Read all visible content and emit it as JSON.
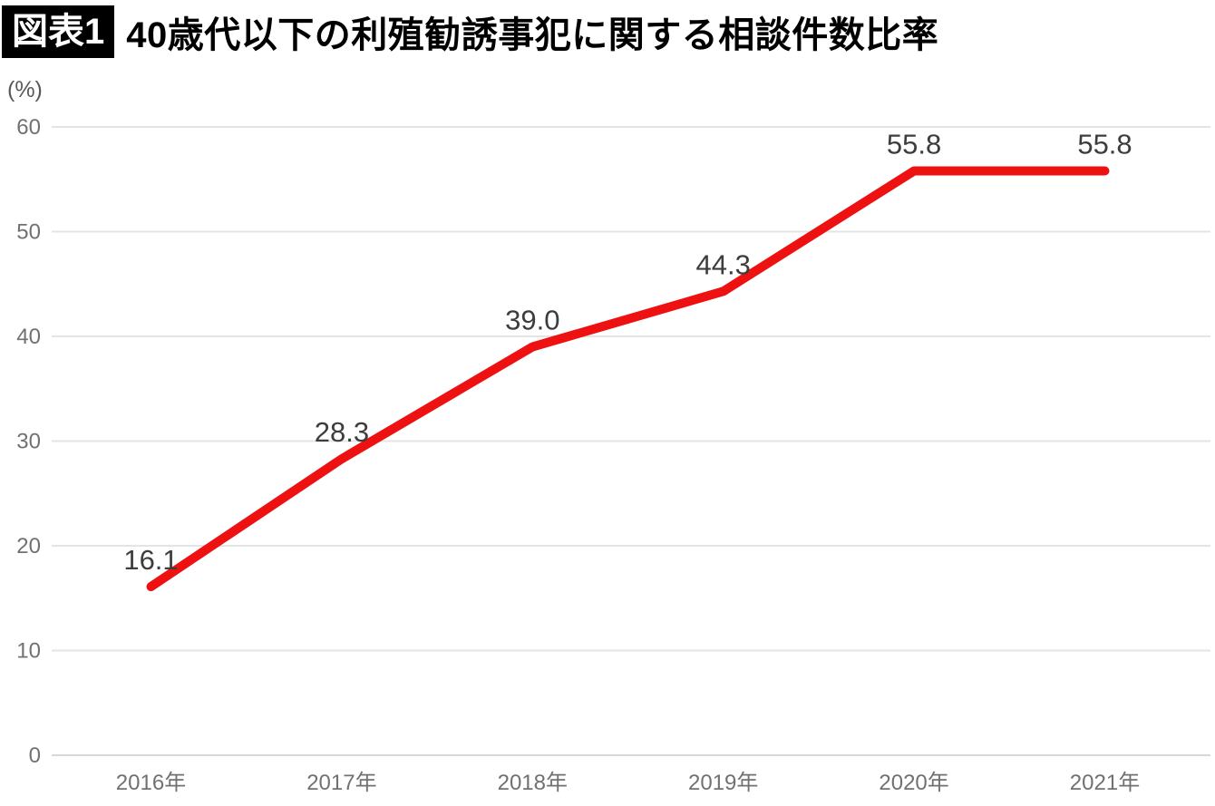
{
  "figure": {
    "badge_label": "図表1",
    "title": "40歳代以下の利殖勧誘事犯に関する相談件数比率",
    "unit_label": "(%)"
  },
  "chart_data": {
    "type": "line",
    "title": "40歳代以下の利殖勧誘事犯に関する相談件数比率",
    "categories": [
      "2016年",
      "2017年",
      "2018年",
      "2019年",
      "2020年",
      "2021年"
    ],
    "values": [
      16.1,
      28.3,
      39.0,
      44.3,
      55.8,
      55.8
    ],
    "data_labels": [
      "16.1",
      "28.3",
      "39.0",
      "44.3",
      "55.8",
      "55.8"
    ],
    "xlabel": "",
    "ylabel": "(%)",
    "ylim": [
      0,
      60
    ],
    "yticks": [
      0,
      10,
      20,
      30,
      40,
      50,
      60
    ],
    "grid": true,
    "legend": "none",
    "colors": {
      "line": "#ee1111",
      "data_label": "#3d3d3d",
      "tick_label": "#717171",
      "gridline": "#e4e4e4",
      "axis_line": "#d8d8d8",
      "title": "#000000",
      "badge_bg": "#000000",
      "badge_text": "#ffffff"
    }
  }
}
